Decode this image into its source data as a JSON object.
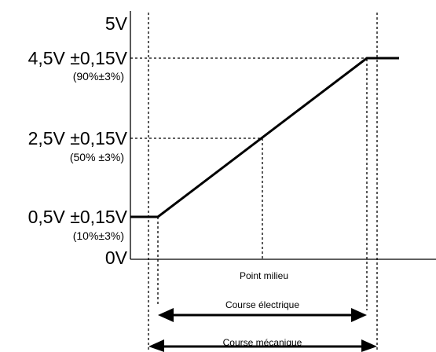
{
  "y_axis": {
    "top_label": "5V",
    "bottom_label": "0V",
    "levels": [
      {
        "main": "4,5V ±0,15V",
        "sub": "(90%±3%)"
      },
      {
        "main": "2,5V ±0,15V",
        "sub": "(50% ±3%)"
      },
      {
        "main": "0,5V ±0,15V",
        "sub": "(10%±3%)"
      }
    ]
  },
  "x_axis": {
    "midpoint_label": "Point milieu"
  },
  "ranges": {
    "electrical": "Course électrique",
    "mechanical": "Course mécanique"
  }
}
